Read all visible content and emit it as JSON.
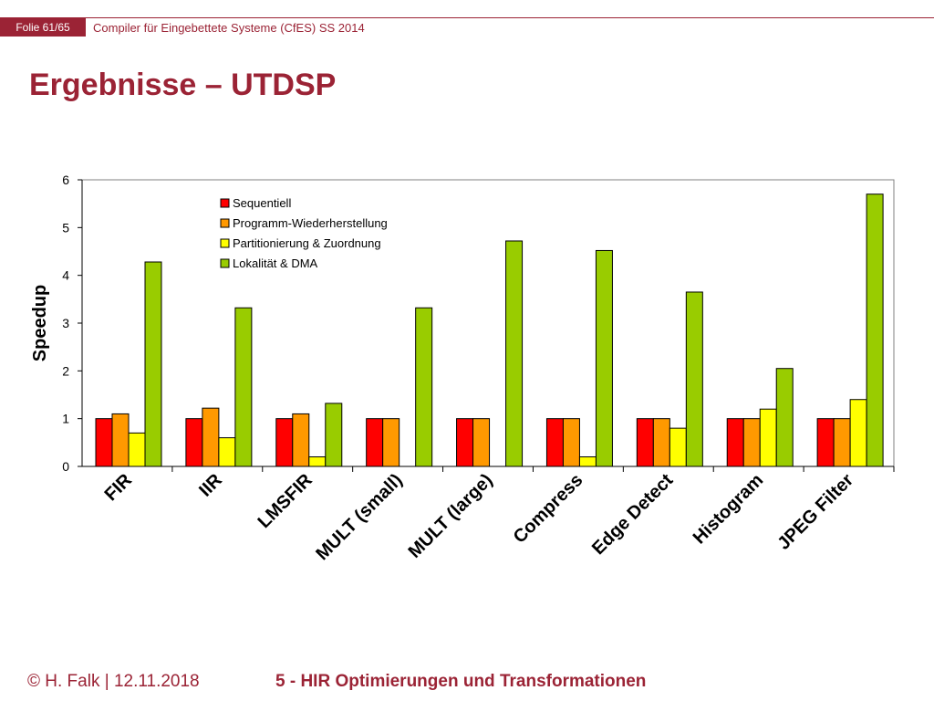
{
  "header": {
    "slide_label": "Folie 61/65",
    "course": "Compiler für Eingebettete Systeme (CfES) SS 2014"
  },
  "page_title": "Ergebnisse – UTDSP",
  "footer": {
    "left": "© H. Falk | 12.11.2018",
    "right": "5 - HIR Optimierungen und Transformationen"
  },
  "chart_data": {
    "type": "bar",
    "ylabel": "Speedup",
    "ylim": [
      0,
      6
    ],
    "yticks": [
      0,
      1,
      2,
      3,
      4,
      5,
      6
    ],
    "legend_position": "top-left",
    "grid": false,
    "categories": [
      "FIR",
      "IIR",
      "LMSFIR",
      "MULT (small)",
      "MULT (large)",
      "Compress",
      "Edge Detect",
      "Histogram",
      "JPEG Filter"
    ],
    "series": [
      {
        "name": "Sequentiell",
        "color": "#ff0000",
        "values": [
          1,
          1,
          1,
          1,
          1,
          1,
          1,
          1,
          1
        ]
      },
      {
        "name": "Programm-Wiederherstellung",
        "color": "#ff9900",
        "values": [
          1.1,
          1.22,
          1.1,
          1,
          1,
          1,
          1,
          1,
          1
        ]
      },
      {
        "name": "Partitionierung & Zuordnung",
        "color": "#ffff00",
        "values": [
          0.7,
          0.6,
          0.2,
          null,
          null,
          0.2,
          0.8,
          1.2,
          1.4
        ]
      },
      {
        "name": "Lokalität & DMA",
        "color": "#99cc00",
        "values": [
          4.28,
          3.32,
          1.32,
          3.32,
          4.72,
          4.52,
          3.65,
          2.05,
          5.7
        ]
      }
    ]
  }
}
